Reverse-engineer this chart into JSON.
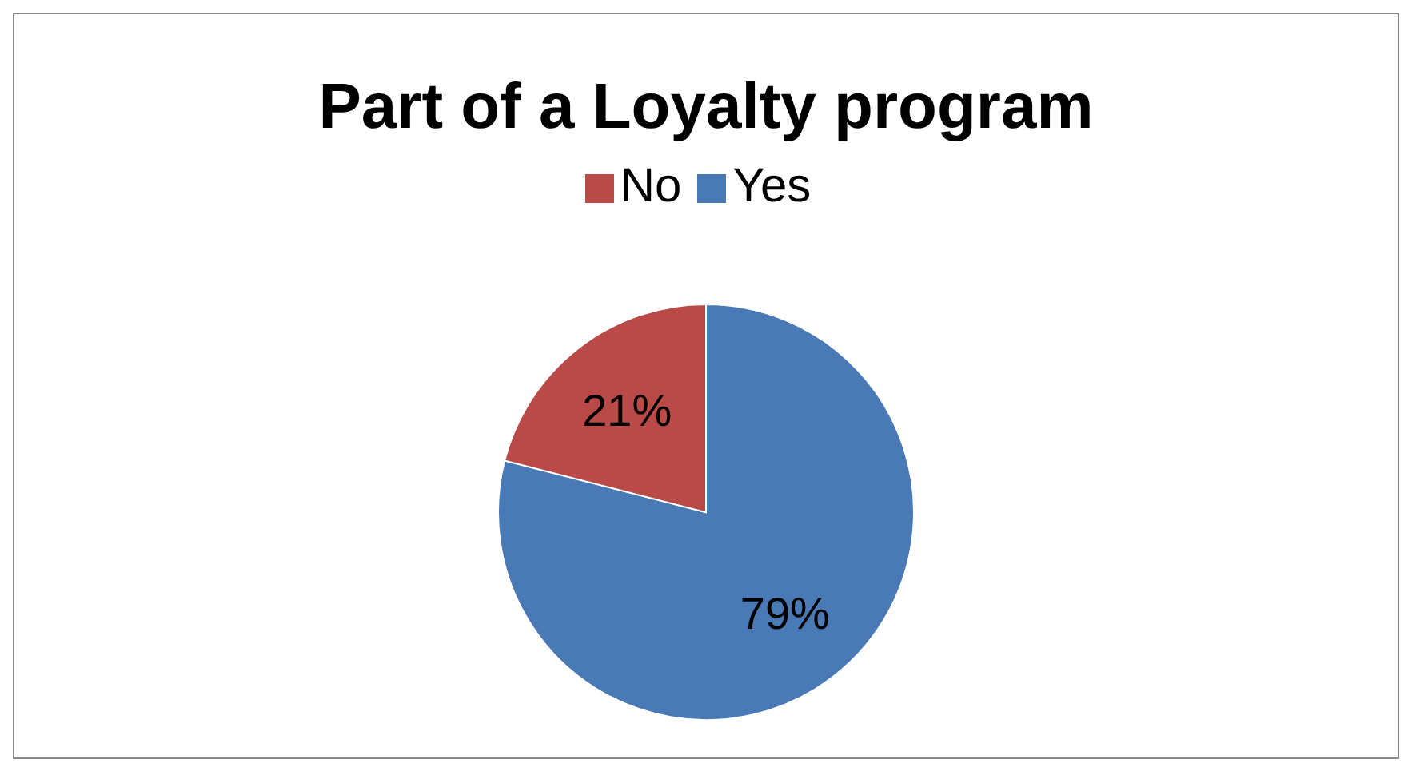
{
  "chart_data": {
    "type": "pie",
    "title": "Part of a Loyalty program",
    "categories": [
      "Yes",
      "No"
    ],
    "values": [
      79,
      21
    ],
    "colors": [
      "#4a7ab5",
      "#b94a48"
    ],
    "value_labels": [
      "79%",
      "21%"
    ],
    "legend": "top"
  }
}
